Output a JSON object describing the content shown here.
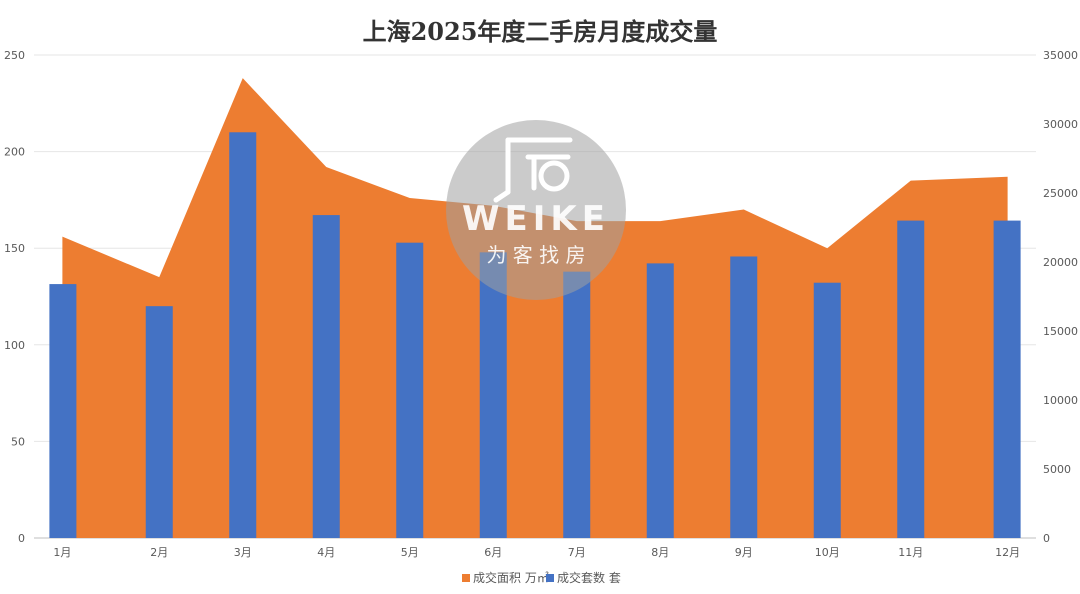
{
  "chart_data": {
    "type": "bar",
    "title": "上海2025年度二手房月度成交量",
    "categories": [
      "1月",
      "2月",
      "3月",
      "4月",
      "5月",
      "6月",
      "7月",
      "8月",
      "9月",
      "10月",
      "11月",
      "12月"
    ],
    "series": [
      {
        "name": "成交面积 万㎡",
        "chart_type": "area",
        "axis": "left",
        "color": "#ED7D31",
        "values": [
          156,
          135,
          238,
          192,
          176,
          172,
          164,
          164,
          170,
          150,
          185,
          187
        ]
      },
      {
        "name": "成交套数 套",
        "chart_type": "bar",
        "axis": "right",
        "color": "#4472C4",
        "values": [
          18400,
          16800,
          29400,
          23400,
          21400,
          20700,
          19300,
          19900,
          20400,
          18500,
          23000,
          23000
        ]
      }
    ],
    "y_left": {
      "ticks": [
        0,
        50,
        100,
        150,
        200,
        250
      ],
      "ylim": [
        0,
        250
      ]
    },
    "y_right": {
      "ticks": [
        0,
        5000,
        10000,
        15000,
        20000,
        25000,
        30000,
        35000
      ],
      "ylim": [
        0,
        35000
      ]
    },
    "grid": true,
    "legend": "bottom-center"
  },
  "watermark": {
    "brand": "WEIKE",
    "slogan": "为 客 找 房",
    "icon": "house-logo-icon"
  }
}
